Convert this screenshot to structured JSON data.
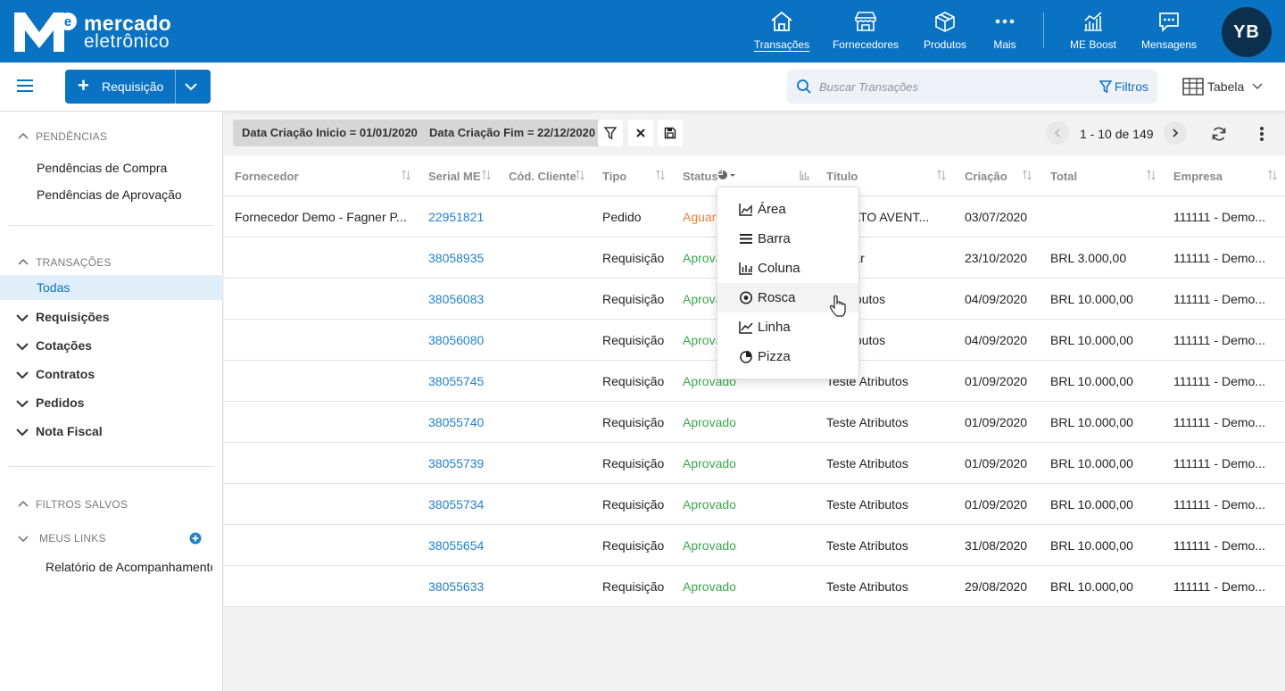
{
  "brand": {
    "line1": "mercado",
    "line2": "eletrônico",
    "mark_letter": "e",
    "colors": {
      "primary": "#0a72c2",
      "avatar": "#0c2f4d"
    }
  },
  "nav": [
    {
      "label": "Transações",
      "icon": "home-icon",
      "active": true
    },
    {
      "label": "Fornecedores",
      "icon": "store-icon"
    },
    {
      "label": "Produtos",
      "icon": "box-icon"
    },
    {
      "label": "Mais",
      "icon": "more-dots-icon"
    },
    {
      "label": "ME Boost",
      "icon": "boost-chart-icon"
    },
    {
      "label": "Mensagens",
      "icon": "message-icon"
    }
  ],
  "user": {
    "initials": "YB"
  },
  "toolbar": {
    "new_label": "Requisição",
    "search_placeholder": "Buscar Transações",
    "filters_label": "Filtros",
    "view_label": "Tabela"
  },
  "sidebar": {
    "pendencias": {
      "title": "PENDÊNCIAS",
      "items": [
        "Pendências de Compra",
        "Pendências de Aprovação"
      ]
    },
    "transacoes": {
      "title": "TRANSAÇÕES",
      "active": "Todas",
      "groups": [
        "Requisições",
        "Cotações",
        "Contratos",
        "Pedidos",
        "Nota Fiscal"
      ]
    },
    "filtros": {
      "title": "FILTROS SALVOS",
      "links_title": "MEUS LINKS",
      "link_item": "Relatório de Acompanhamento"
    }
  },
  "filters": {
    "chip1": "Data Criação Inicio = 01/01/2020",
    "chip2": "Data Criação Fim = 22/12/2020"
  },
  "pager": {
    "text": "1 - 10 de 149"
  },
  "table": {
    "headers": [
      "Fornecedor",
      "Serial ME",
      "Cód. Cliente",
      "Tipo",
      "Status",
      "Título",
      "Criação",
      "Total",
      "Empresa"
    ],
    "rows": [
      {
        "fornecedor": "Fornecedor Demo - Fagner P...",
        "serial": "22951821",
        "cod": "",
        "tipo": "Pedido",
        "status": "Aguard",
        "status_kind": "wait",
        "titulo": "NTRATO AVENT...",
        "criacao": "03/07/2020",
        "total": "",
        "empresa": "111111 - Demo..."
      },
      {
        "fornecedor": "",
        "serial": "38058935",
        "cod": "",
        "tipo": "Requisição",
        "status": "Aprovad",
        "status_kind": "ok",
        "titulo": "e dolar",
        "criacao": "23/10/2020",
        "total": "BRL 3.000,00",
        "empresa": "111111 - Demo..."
      },
      {
        "fornecedor": "",
        "serial": "38056083",
        "cod": "",
        "tipo": "Requisição",
        "status": "Aprovad",
        "status_kind": "ok",
        "titulo": "e Atributos",
        "criacao": "04/09/2020",
        "total": "BRL 10.000,00",
        "empresa": "111111 - Demo..."
      },
      {
        "fornecedor": "",
        "serial": "38056080",
        "cod": "",
        "tipo": "Requisição",
        "status": "Aprovad",
        "status_kind": "ok",
        "titulo": "e Atributos",
        "criacao": "04/09/2020",
        "total": "BRL 10.000,00",
        "empresa": "111111 - Demo..."
      },
      {
        "fornecedor": "",
        "serial": "38055745",
        "cod": "",
        "tipo": "Requisição",
        "status": "Aprovado",
        "status_kind": "ok",
        "titulo": "Teste Atributos",
        "criacao": "01/09/2020",
        "total": "BRL 10.000,00",
        "empresa": "111111 - Demo..."
      },
      {
        "fornecedor": "",
        "serial": "38055740",
        "cod": "",
        "tipo": "Requisição",
        "status": "Aprovado",
        "status_kind": "ok",
        "titulo": "Teste Atributos",
        "criacao": "01/09/2020",
        "total": "BRL 10.000,00",
        "empresa": "111111 - Demo..."
      },
      {
        "fornecedor": "",
        "serial": "38055739",
        "cod": "",
        "tipo": "Requisição",
        "status": "Aprovado",
        "status_kind": "ok",
        "titulo": "Teste Atributos",
        "criacao": "01/09/2020",
        "total": "BRL 10.000,00",
        "empresa": "111111 - Demo..."
      },
      {
        "fornecedor": "",
        "serial": "38055734",
        "cod": "",
        "tipo": "Requisição",
        "status": "Aprovado",
        "status_kind": "ok",
        "titulo": "Teste Atributos",
        "criacao": "01/09/2020",
        "total": "BRL 10.000,00",
        "empresa": "111111 - Demo..."
      },
      {
        "fornecedor": "",
        "serial": "38055654",
        "cod": "",
        "tipo": "Requisição",
        "status": "Aprovado",
        "status_kind": "ok",
        "titulo": "Teste Atributos",
        "criacao": "31/08/2020",
        "total": "BRL 10.000,00",
        "empresa": "111111 - Demo..."
      },
      {
        "fornecedor": "",
        "serial": "38055633",
        "cod": "",
        "tipo": "Requisição",
        "status": "Aprovado",
        "status_kind": "ok",
        "titulo": "Teste Atributos",
        "criacao": "29/08/2020",
        "total": "BRL 10.000,00",
        "empresa": "111111 - Demo..."
      }
    ]
  },
  "chart_menu": {
    "items": [
      {
        "label": "Área",
        "icon": "area-chart-icon"
      },
      {
        "label": "Barra",
        "icon": "bar-chart-icon"
      },
      {
        "label": "Coluna",
        "icon": "column-chart-icon"
      },
      {
        "label": "Rosca",
        "icon": "donut-chart-icon",
        "hover": true
      },
      {
        "label": "Linha",
        "icon": "line-chart-icon"
      },
      {
        "label": "Pizza",
        "icon": "pie-chart-icon"
      }
    ]
  }
}
